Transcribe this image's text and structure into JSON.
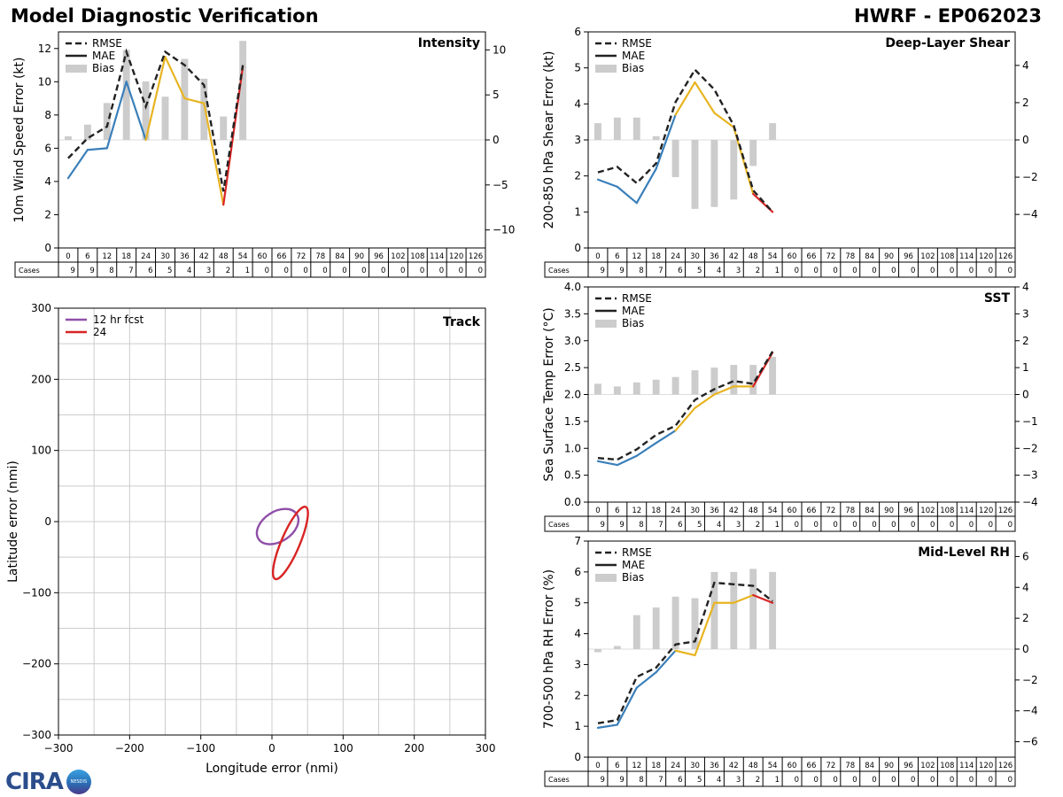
{
  "header": {
    "title_left": "Model Diagnostic Verification",
    "title_right": "HWRF - EP062023"
  },
  "logo": {
    "text": "CIRA",
    "sub": "NESDIS"
  },
  "colors": {
    "rmse": "#222222",
    "mae_early": "#3a7fba",
    "mae_mid": "#e8b422",
    "mae_late": "#d82424",
    "bias": "#cccccc",
    "grid": "#dddddd",
    "track12": "#8f4fa8",
    "track24": "#d82424"
  },
  "table": {
    "hours": [
      "0",
      "6",
      "12",
      "18",
      "24",
      "30",
      "36",
      "42",
      "48",
      "54",
      "60",
      "66",
      "72",
      "78",
      "84",
      "90",
      "96",
      "102",
      "108",
      "114",
      "120",
      "126"
    ],
    "cases_label": "Cases",
    "cases": [
      "9",
      "9",
      "8",
      "7",
      "6",
      "5",
      "4",
      "3",
      "2",
      "1",
      "0",
      "0",
      "0",
      "0",
      "0",
      "0",
      "0",
      "0",
      "0",
      "0",
      "0",
      "0"
    ]
  },
  "legend": {
    "rmse": "RMSE",
    "mae": "MAE",
    "bias": "Bias"
  },
  "chart_data": [
    {
      "id": "intensity",
      "type": "line",
      "title": "Intensity",
      "ylabel": "10m Wind Speed Error (kt)",
      "ylim": [
        0,
        13
      ],
      "yticks": [
        0,
        2,
        4,
        6,
        8,
        10,
        12
      ],
      "ytick_labels": [
        "0",
        "2",
        "4",
        "6",
        "8",
        "10",
        "12"
      ],
      "y2lim": [
        -12,
        12
      ],
      "y2ticks": [
        -10,
        -5,
        0,
        5,
        10
      ],
      "y2tick_labels": [
        "−10",
        "−5",
        "0",
        "5",
        "10"
      ],
      "x": [
        0,
        6,
        12,
        18,
        24,
        30,
        36,
        42,
        48,
        54
      ],
      "rmse": [
        5.4,
        6.6,
        7.3,
        11.8,
        8.5,
        11.8,
        11.0,
        9.8,
        3.4,
        11.0
      ],
      "mae": [
        4.2,
        5.9,
        6.0,
        10.0,
        6.5,
        11.5,
        9.0,
        8.7,
        2.6,
        10.9
      ],
      "bias": [
        0.4,
        1.7,
        4.1,
        10.0,
        6.5,
        4.8,
        9.0,
        6.8,
        2.6,
        11.0
      ]
    },
    {
      "id": "shear",
      "type": "line",
      "title": "Deep-Layer Shear",
      "ylabel": "200-850 hPa Shear Error (kt)",
      "ylim": [
        0,
        6
      ],
      "yticks": [
        0,
        1,
        2,
        3,
        4,
        5,
        6
      ],
      "ytick_labels": [
        "0",
        "1",
        "2",
        "3",
        "4",
        "5",
        "6"
      ],
      "y2lim": [
        -5.8,
        5.8
      ],
      "y2ticks": [
        -4,
        -2,
        0,
        2,
        4
      ],
      "y2tick_labels": [
        "−4",
        "−2",
        "0",
        "2",
        "4"
      ],
      "x": [
        0,
        6,
        12,
        18,
        24,
        30,
        36,
        42,
        48,
        54
      ],
      "rmse": [
        2.1,
        2.25,
        1.8,
        2.35,
        4.05,
        4.95,
        4.4,
        3.4,
        1.6,
        1.0
      ],
      "mae": [
        1.9,
        1.7,
        1.25,
        2.2,
        3.7,
        4.6,
        3.75,
        3.35,
        1.5,
        1.0
      ],
      "bias": [
        0.9,
        1.2,
        1.2,
        0.2,
        -2.0,
        -3.7,
        -3.6,
        -3.2,
        -1.4,
        0.9
      ]
    },
    {
      "id": "sst",
      "type": "line",
      "title": "SST",
      "ylabel": "Sea Surface Temp Error (°C)",
      "ylim": [
        0,
        4
      ],
      "yticks": [
        0,
        0.5,
        1,
        1.5,
        2,
        2.5,
        3,
        3.5,
        4
      ],
      "ytick_labels": [
        "0.0",
        "0.5",
        "1.0",
        "1.5",
        "2.0",
        "2.5",
        "3.0",
        "3.5",
        "4.0"
      ],
      "y2lim": [
        -4,
        4
      ],
      "y2ticks": [
        -4,
        -3,
        -2,
        -1,
        0,
        1,
        2,
        3,
        4
      ],
      "y2tick_labels": [
        "−4",
        "−3",
        "−2",
        "−1",
        "0",
        "1",
        "2",
        "3",
        "4"
      ],
      "x": [
        0,
        6,
        12,
        18,
        24,
        30,
        36,
        42,
        48,
        54
      ],
      "rmse": [
        0.82,
        0.79,
        0.98,
        1.25,
        1.42,
        1.9,
        2.1,
        2.25,
        2.2,
        2.8
      ],
      "mae": [
        0.76,
        0.69,
        0.86,
        1.1,
        1.33,
        1.75,
        2.0,
        2.15,
        2.15,
        2.78
      ],
      "bias": [
        0.4,
        0.3,
        0.45,
        0.55,
        0.65,
        0.9,
        1.0,
        1.1,
        1.1,
        1.4
      ]
    },
    {
      "id": "rh",
      "type": "line",
      "title": "Mid-Level RH",
      "ylabel": "700-500 hPa RH Error (%)",
      "ylim": [
        0,
        7
      ],
      "yticks": [
        0,
        1,
        2,
        3,
        4,
        5,
        6,
        7
      ],
      "ytick_labels": [
        "0",
        "1",
        "2",
        "3",
        "4",
        "5",
        "6",
        "7"
      ],
      "y2lim": [
        -7,
        7
      ],
      "y2ticks": [
        -6,
        -4,
        -2,
        0,
        2,
        4,
        6
      ],
      "y2tick_labels": [
        "−6",
        "−4",
        "−2",
        "0",
        "2",
        "4",
        "6"
      ],
      "x": [
        0,
        6,
        12,
        18,
        24,
        30,
        36,
        42,
        48,
        54
      ],
      "rmse": [
        1.1,
        1.2,
        2.6,
        2.9,
        3.65,
        3.75,
        5.65,
        5.6,
        5.55,
        5.05
      ],
      "mae": [
        0.95,
        1.05,
        2.25,
        2.75,
        3.45,
        3.3,
        5.0,
        5.0,
        5.25,
        5.0
      ],
      "bias": [
        -0.2,
        0.2,
        2.2,
        2.7,
        3.4,
        3.3,
        5.0,
        5.0,
        5.2,
        5.0
      ]
    },
    {
      "id": "track",
      "type": "scatter",
      "title": "Track",
      "xlabel": "Longitude error (nmi)",
      "ylabel": "Latitude error (nmi)",
      "xlim": [
        -300,
        300
      ],
      "ylim": [
        -300,
        300
      ],
      "ticks": [
        -300,
        -200,
        -100,
        0,
        100,
        200,
        300
      ],
      "tick_labels": [
        "−300",
        "−200",
        "−100",
        "0",
        "100",
        "200",
        "300"
      ],
      "ellipses": [
        {
          "name": "12 hr fcst",
          "cx": 8,
          "cy": -7,
          "rx": 32,
          "ry": 21,
          "angle_deg": 33
        },
        {
          "name": "24",
          "cx": 26,
          "cy": -30,
          "rx": 55,
          "ry": 13,
          "angle_deg": 67
        }
      ]
    }
  ]
}
